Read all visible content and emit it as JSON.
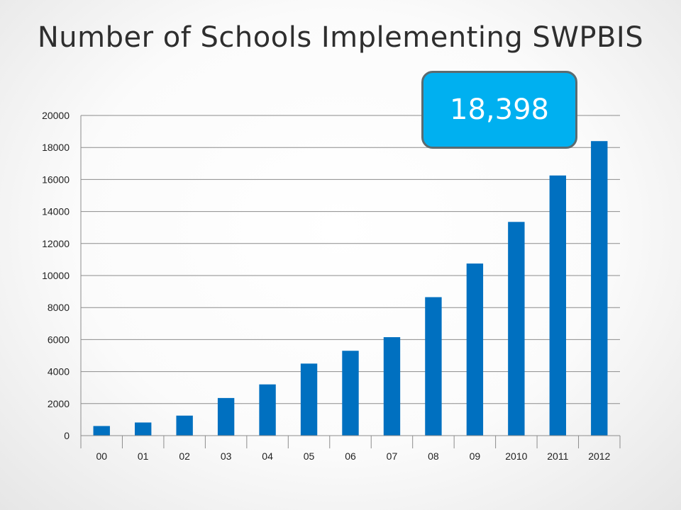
{
  "title": "Number of Schools Implementing SWPBIS",
  "callout": {
    "text": "18,398"
  },
  "colors": {
    "bar": "#0070c0",
    "callout": "#00b0f0",
    "gridline": "#8c8c8c"
  },
  "chart_data": {
    "type": "bar",
    "title": "Number of Schools Implementing SWPBIS",
    "categories": [
      "00",
      "01",
      "02",
      "03",
      "04",
      "05",
      "06",
      "07",
      "08",
      "09",
      "2010",
      "2011",
      "2012"
    ],
    "values": [
      600,
      820,
      1250,
      2350,
      3200,
      4500,
      5300,
      6150,
      8650,
      10750,
      13350,
      16250,
      18398
    ],
    "ylim": [
      0,
      20000
    ],
    "yticks": [
      0,
      2000,
      4000,
      6000,
      8000,
      10000,
      12000,
      14000,
      16000,
      18000,
      20000
    ],
    "xlabel": "",
    "ylabel": "",
    "grid": true,
    "legend": "none"
  }
}
